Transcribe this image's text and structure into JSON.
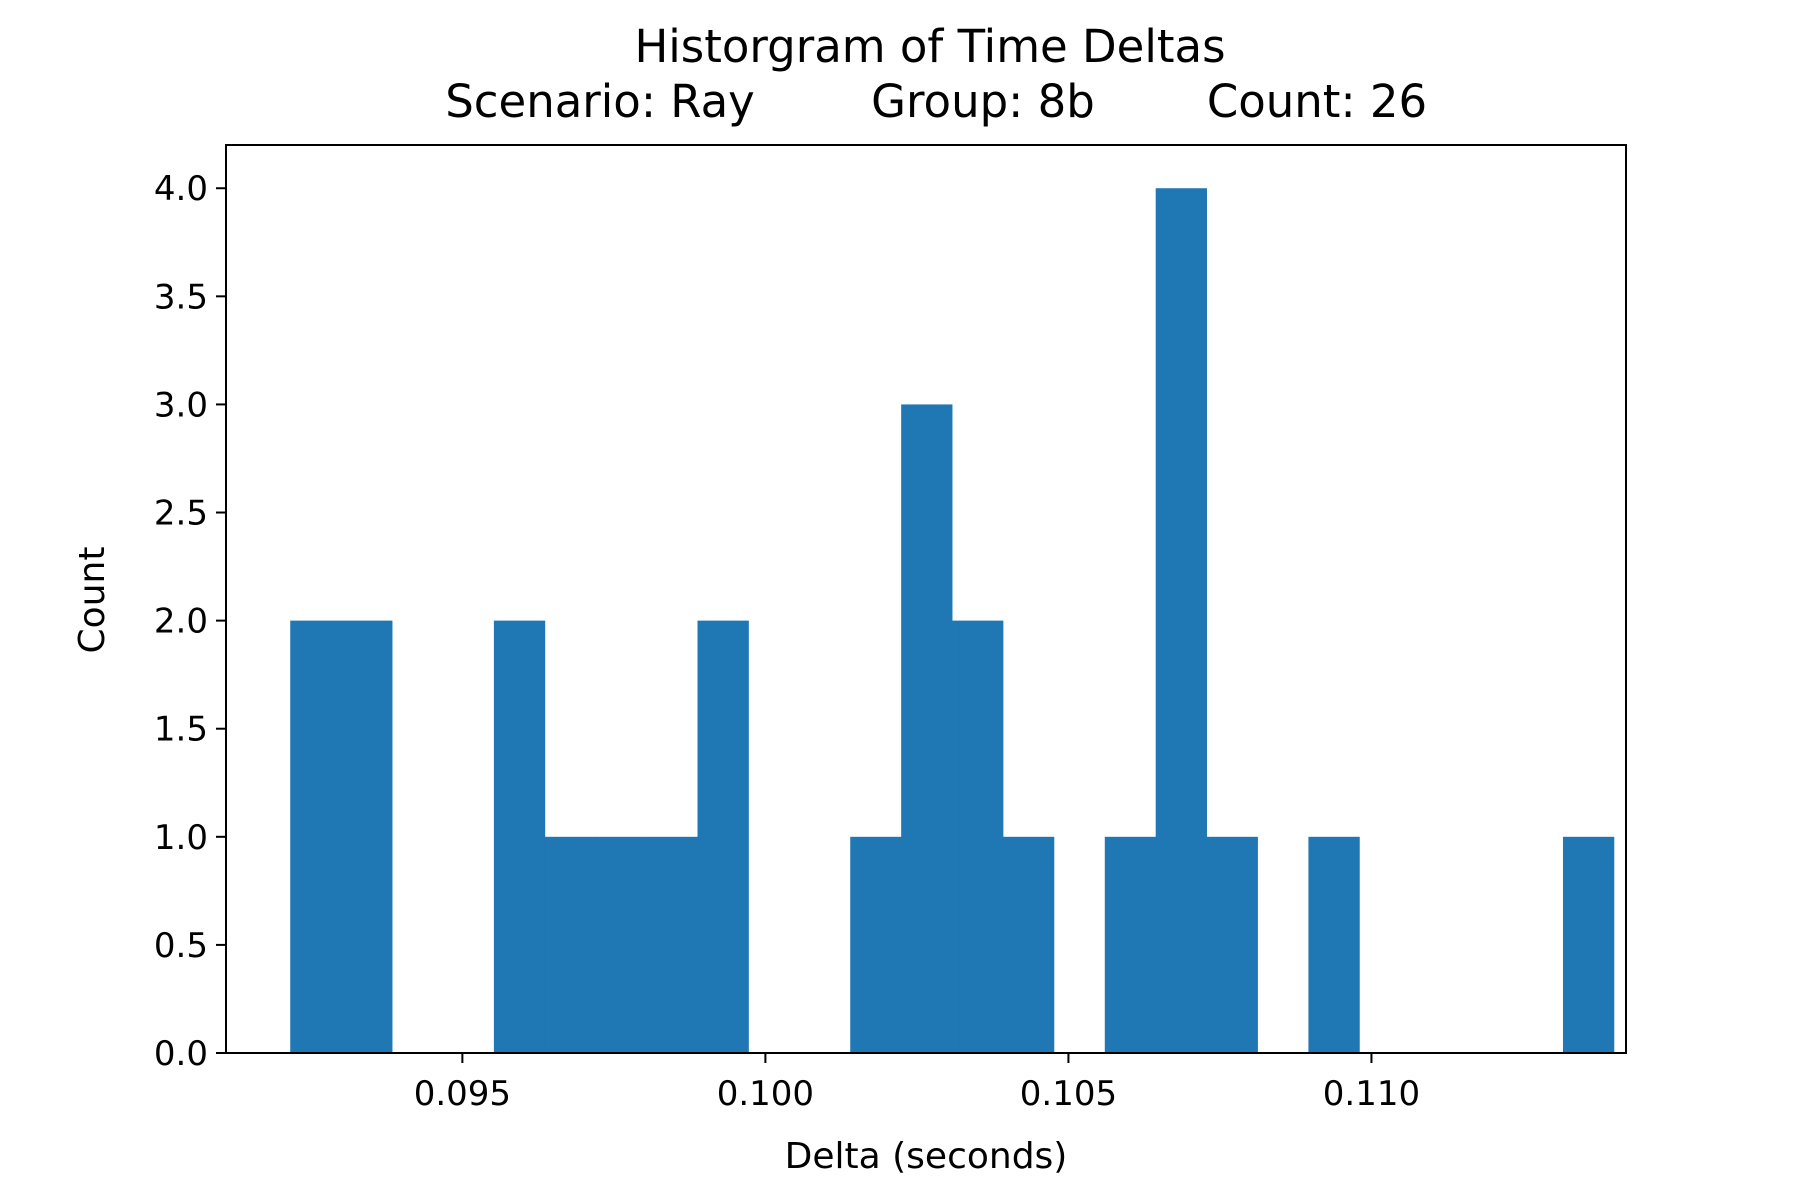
{
  "chart_data": {
    "type": "bar",
    "title_line1": "Historgram of Time Deltas",
    "title_line2": {
      "scenario": "Scenario: Ray",
      "group": "Group: 8b",
      "count": "Count: 26"
    },
    "xlabel": "Delta (seconds)",
    "ylabel": "Count",
    "xlim": [
      0.0911,
      0.1142
    ],
    "ylim": [
      0,
      4.2
    ],
    "x_ticks": [
      0.095,
      0.1,
      0.105,
      0.11
    ],
    "x_tick_labels": [
      "0.095",
      "0.100",
      "0.105",
      "0.110"
    ],
    "y_ticks": [
      0.0,
      0.5,
      1.0,
      1.5,
      2.0,
      2.5,
      3.0,
      3.5,
      4.0
    ],
    "y_tick_labels": [
      "0.0",
      "0.5",
      "1.0",
      "1.5",
      "2.0",
      "2.5",
      "3.0",
      "3.5",
      "4.0"
    ],
    "bin_start": 0.09216,
    "bin_width": 0.00084,
    "values": [
      2,
      2,
      0,
      0,
      2,
      1,
      1,
      1,
      2,
      0,
      0,
      1,
      3,
      2,
      1,
      0,
      1,
      4,
      1,
      0,
      1,
      0,
      0,
      0,
      0,
      1
    ],
    "bar_color": "#1f77b4",
    "grid": false
  }
}
